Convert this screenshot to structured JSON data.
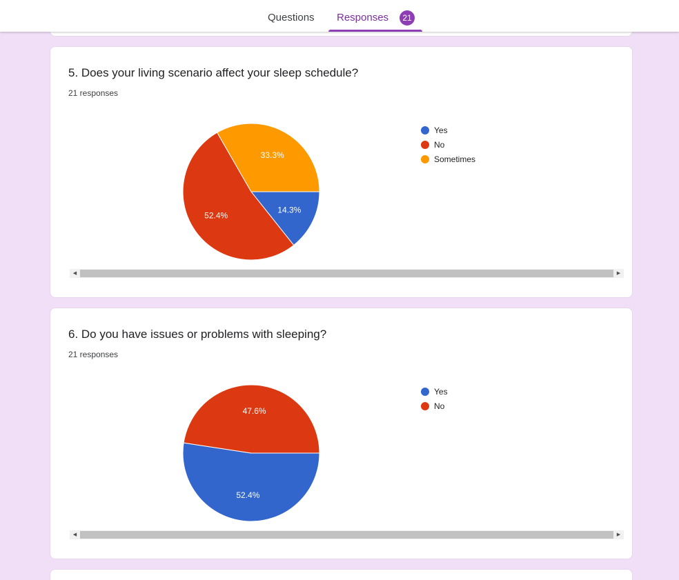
{
  "tabs": {
    "questions_label": "Questions",
    "responses_label": "Responses",
    "responses_count": "21"
  },
  "colors": {
    "yes": "#3366cc",
    "no": "#dc3912",
    "sometimes": "#ff9900",
    "accent": "#8e3eb5",
    "background": "#f0dff6"
  },
  "icons": {
    "scroll_left": "triangle-left",
    "scroll_right": "triangle-right"
  },
  "questions": [
    {
      "title": "5. Does your living scenario affect your sleep schedule?",
      "responses": "21 responses",
      "legend": [
        "Yes",
        "No",
        "Sometimes"
      ],
      "slice_labels": [
        "14.3%",
        "52.4%",
        "33.3%"
      ]
    },
    {
      "title": "6. Do you have issues or problems with sleeping?",
      "responses": "21 responses",
      "legend": [
        "Yes",
        "No"
      ],
      "slice_labels": [
        "52.4%",
        "47.6%"
      ]
    }
  ],
  "chart_data": [
    {
      "type": "pie",
      "categories": [
        "Yes",
        "No",
        "Sometimes"
      ],
      "values": [
        14.3,
        52.4,
        33.3
      ],
      "colors": [
        "#3366cc",
        "#dc3912",
        "#ff9900"
      ],
      "legend": "right"
    },
    {
      "type": "pie",
      "categories": [
        "Yes",
        "No"
      ],
      "values": [
        52.4,
        47.6
      ],
      "colors": [
        "#3366cc",
        "#dc3912"
      ],
      "legend": "right"
    }
  ]
}
